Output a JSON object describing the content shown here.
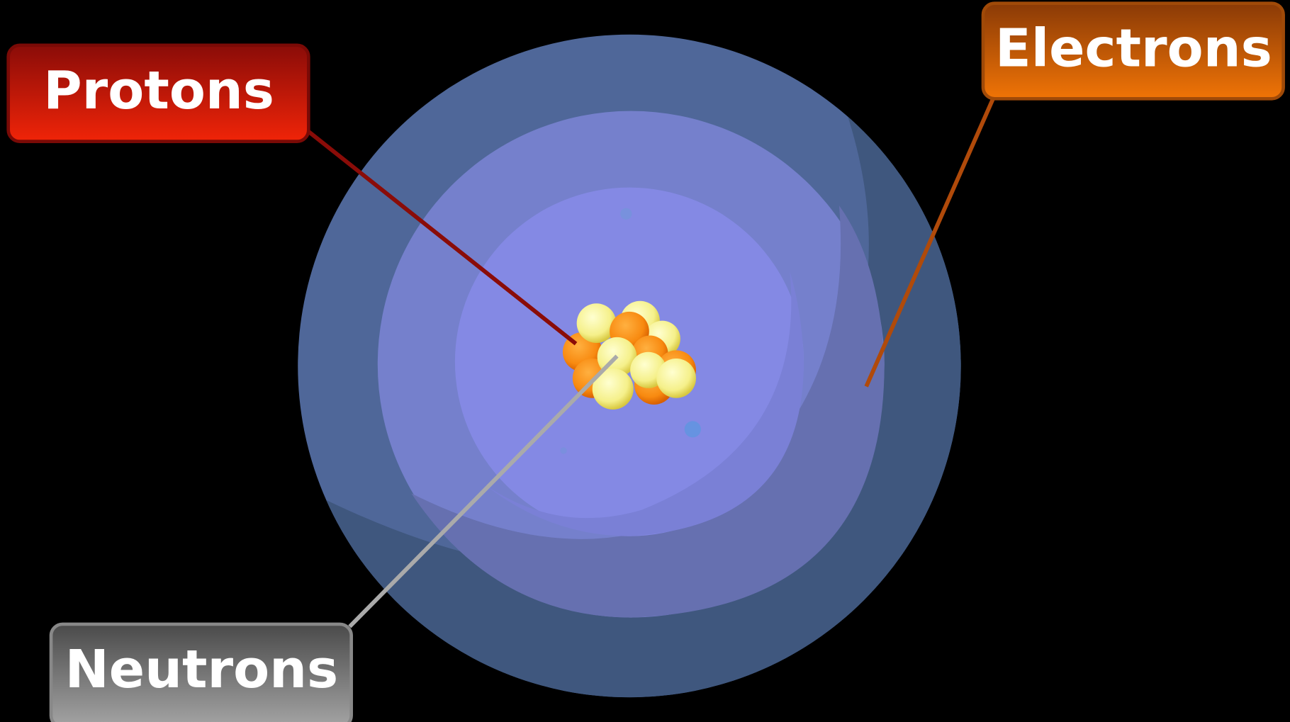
{
  "labels": {
    "protons": "Protons",
    "electrons": "Electrons",
    "neutrons": "Neutrons"
  }
}
